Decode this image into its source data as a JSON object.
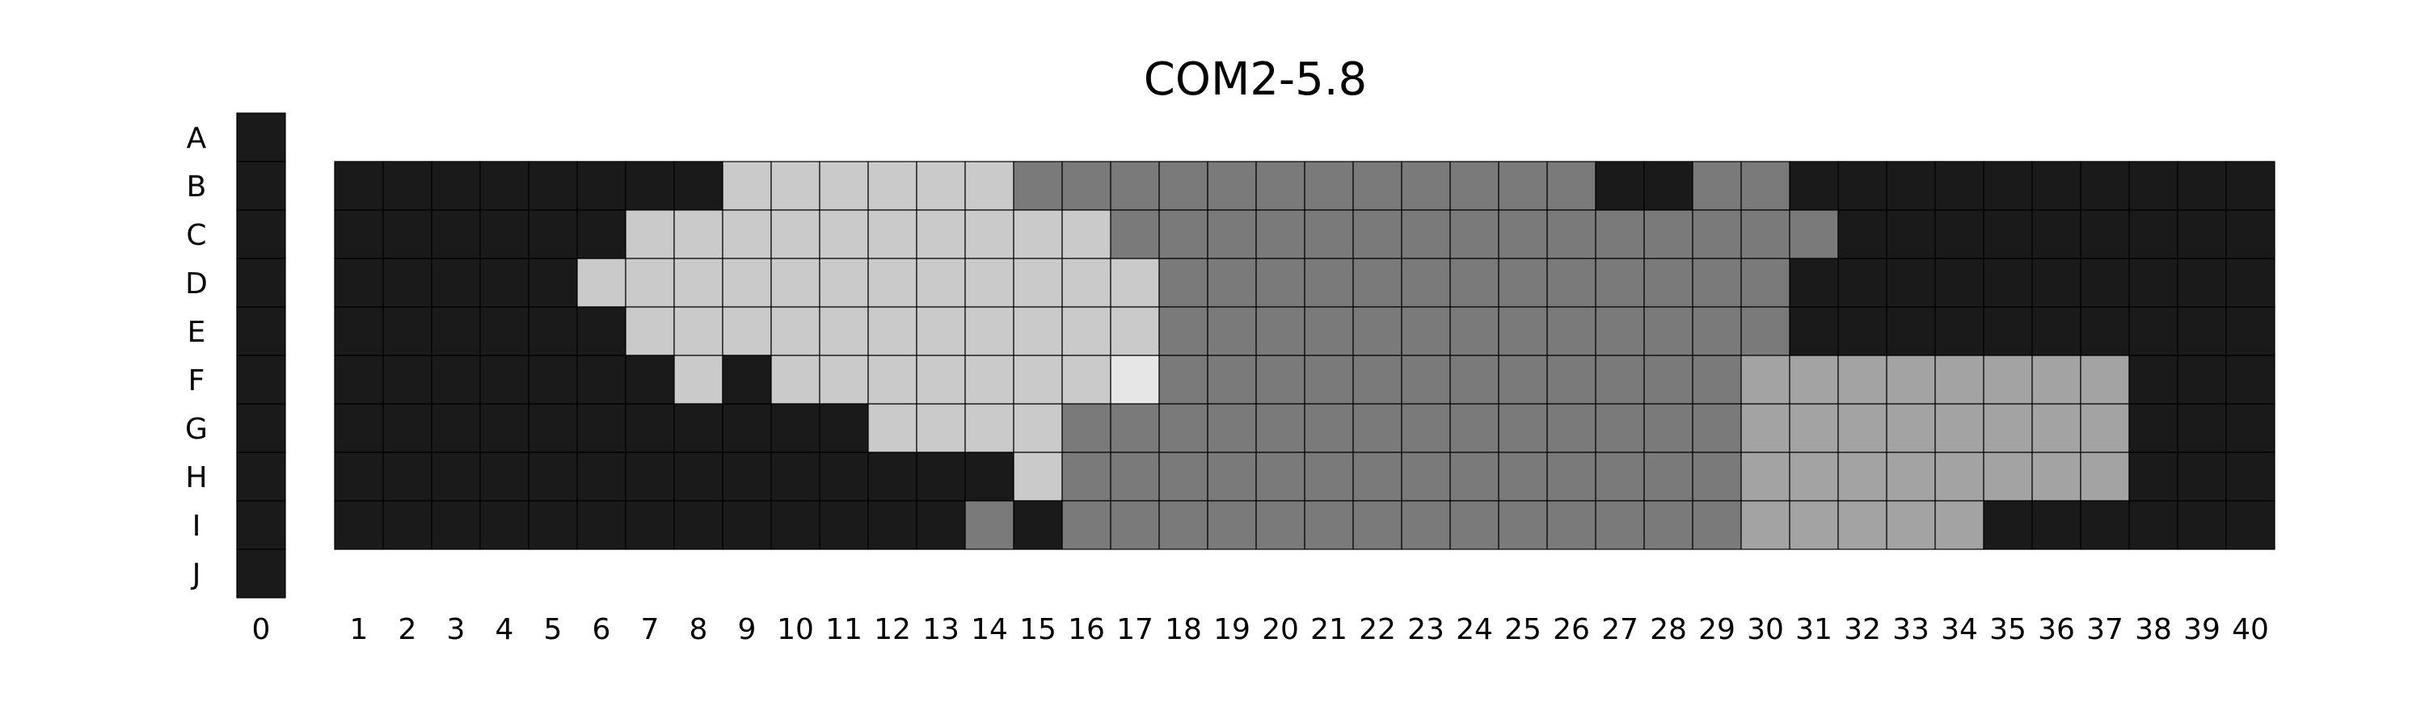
{
  "chart_data": {
    "type": "heatmap",
    "title": "COM2-5.8",
    "rows": [
      "A",
      "B",
      "C",
      "D",
      "E",
      "F",
      "G",
      "H",
      "I",
      "J"
    ],
    "reference_column": {
      "label": "0",
      "rows": [
        "A",
        "B",
        "C",
        "D",
        "E",
        "F",
        "G",
        "H",
        "I",
        "J"
      ],
      "level": 0
    },
    "columns": [
      "1",
      "2",
      "3",
      "4",
      "5",
      "6",
      "7",
      "8",
      "9",
      "10",
      "11",
      "12",
      "13",
      "14",
      "15",
      "16",
      "17",
      "18",
      "19",
      "20",
      "21",
      "22",
      "23",
      "24",
      "25",
      "26",
      "27",
      "28",
      "29",
      "30",
      "31",
      "32",
      "33",
      "34",
      "35",
      "36",
      "37",
      "38",
      "39",
      "40"
    ],
    "grid_rows": [
      "B",
      "C",
      "D",
      "E",
      "F",
      "G",
      "H",
      "I"
    ],
    "level_colors": [
      "#1a1a1a",
      "#7a7a7a",
      "#a3a3a3",
      "#cacaca",
      "#e6e6e6"
    ],
    "matrix": [
      [
        0,
        0,
        0,
        0,
        0,
        0,
        0,
        0,
        3,
        3,
        3,
        3,
        3,
        3,
        1,
        1,
        1,
        1,
        1,
        1,
        1,
        1,
        1,
        1,
        1,
        1,
        0,
        0,
        1,
        1,
        0,
        0,
        0,
        0,
        0,
        0,
        0,
        0,
        0,
        0
      ],
      [
        0,
        0,
        0,
        0,
        0,
        0,
        3,
        3,
        3,
        3,
        3,
        3,
        3,
        3,
        3,
        3,
        1,
        1,
        1,
        1,
        1,
        1,
        1,
        1,
        1,
        1,
        1,
        1,
        1,
        1,
        1,
        0,
        0,
        0,
        0,
        0,
        0,
        0,
        0,
        0
      ],
      [
        0,
        0,
        0,
        0,
        0,
        3,
        3,
        3,
        3,
        3,
        3,
        3,
        3,
        3,
        3,
        3,
        3,
        1,
        1,
        1,
        1,
        1,
        1,
        1,
        1,
        1,
        1,
        1,
        1,
        1,
        0,
        0,
        0,
        0,
        0,
        0,
        0,
        0,
        0,
        0
      ],
      [
        0,
        0,
        0,
        0,
        0,
        0,
        3,
        3,
        3,
        3,
        3,
        3,
        3,
        3,
        3,
        3,
        3,
        1,
        1,
        1,
        1,
        1,
        1,
        1,
        1,
        1,
        1,
        1,
        1,
        1,
        0,
        0,
        0,
        0,
        0,
        0,
        0,
        0,
        0,
        0
      ],
      [
        0,
        0,
        0,
        0,
        0,
        0,
        0,
        3,
        0,
        3,
        3,
        3,
        3,
        3,
        3,
        3,
        4,
        1,
        1,
        1,
        1,
        1,
        1,
        1,
        1,
        1,
        1,
        1,
        1,
        2,
        2,
        2,
        2,
        2,
        2,
        2,
        2,
        0,
        0,
        0
      ],
      [
        0,
        0,
        0,
        0,
        0,
        0,
        0,
        0,
        0,
        0,
        0,
        3,
        3,
        3,
        3,
        1,
        1,
        1,
        1,
        1,
        1,
        1,
        1,
        1,
        1,
        1,
        1,
        1,
        1,
        2,
        2,
        2,
        2,
        2,
        2,
        2,
        2,
        0,
        0,
        0
      ],
      [
        0,
        0,
        0,
        0,
        0,
        0,
        0,
        0,
        0,
        0,
        0,
        0,
        0,
        0,
        3,
        1,
        1,
        1,
        1,
        1,
        1,
        1,
        1,
        1,
        1,
        1,
        1,
        1,
        1,
        2,
        2,
        2,
        2,
        2,
        2,
        2,
        2,
        0,
        0,
        0
      ],
      [
        0,
        0,
        0,
        0,
        0,
        0,
        0,
        0,
        0,
        0,
        0,
        0,
        0,
        1,
        0,
        1,
        1,
        1,
        1,
        1,
        1,
        1,
        1,
        1,
        1,
        1,
        1,
        1,
        1,
        2,
        2,
        2,
        2,
        2,
        0,
        0,
        0,
        0,
        0,
        0
      ]
    ]
  }
}
